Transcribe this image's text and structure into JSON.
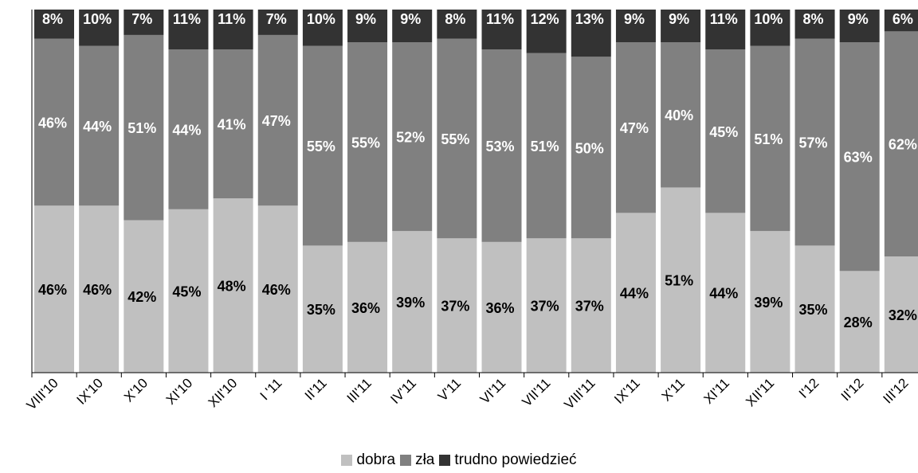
{
  "chart_data": {
    "type": "bar",
    "stacked": true,
    "percent": true,
    "title": "",
    "xlabel": "",
    "ylabel": "",
    "ylim": [
      0,
      100
    ],
    "grid": false,
    "legend_position": "bottom",
    "categories": [
      "VIII'10",
      "IX'10",
      "X'10",
      "XI'10",
      "XII'10",
      "I '11",
      "II'11",
      "III'11",
      "IV'11",
      "V'11",
      "VI'11",
      "VII'11",
      "VIII'11",
      "IX'11",
      "X'11",
      "XI'11",
      "XII'11",
      "I'12",
      "II'12",
      "III'12"
    ],
    "series": [
      {
        "name": "dobra",
        "color": "#c0c0c0",
        "label_color": "#000000",
        "values": [
          46,
          46,
          42,
          45,
          48,
          46,
          35,
          36,
          39,
          37,
          36,
          37,
          37,
          44,
          51,
          44,
          39,
          35,
          28,
          32
        ]
      },
      {
        "name": "zła",
        "color": "#808080",
        "label_color": "#ffffff",
        "values": [
          46,
          44,
          51,
          44,
          41,
          47,
          55,
          55,
          52,
          55,
          53,
          51,
          50,
          47,
          40,
          45,
          51,
          57,
          63,
          62
        ]
      },
      {
        "name": "trudno powiedzieć",
        "color": "#333333",
        "label_color": "#ffffff",
        "values": [
          8,
          10,
          7,
          11,
          11,
          7,
          10,
          9,
          9,
          8,
          11,
          12,
          13,
          9,
          9,
          11,
          10,
          8,
          9,
          6
        ]
      }
    ]
  }
}
